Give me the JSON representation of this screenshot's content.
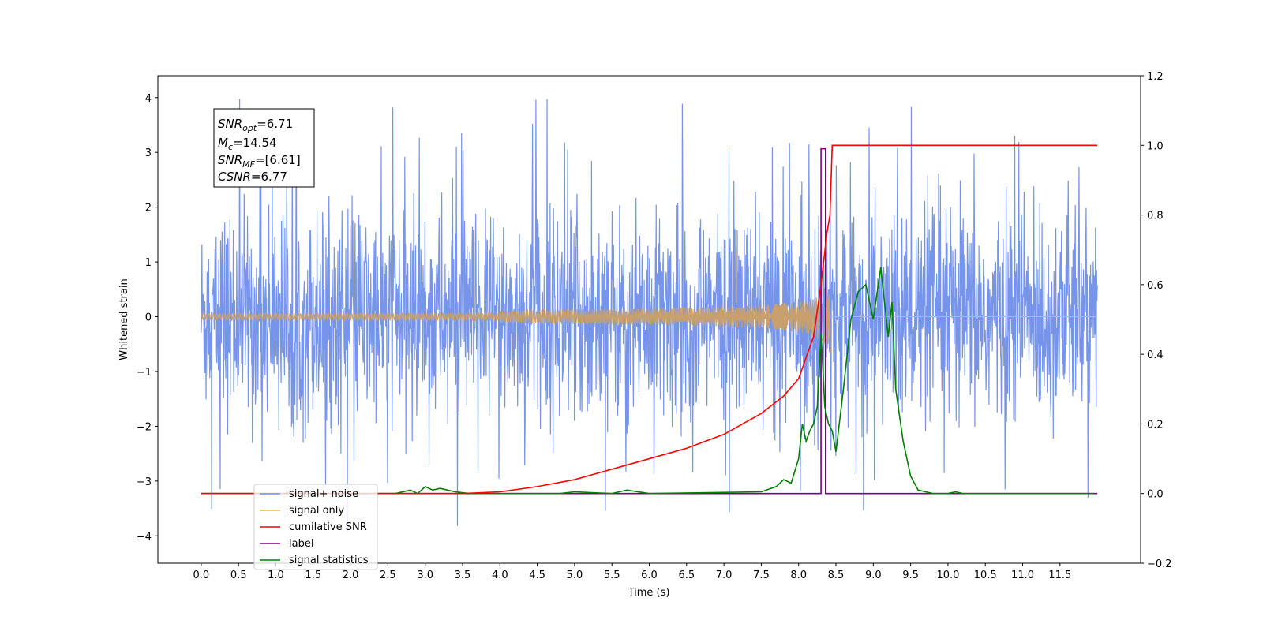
{
  "chart_data": {
    "type": "line",
    "xlabel": "Time (s)",
    "ylabel_left": "Whitened strain",
    "xlim": [
      -0.58,
      12.58
    ],
    "ylim_left": [
      -4.5,
      4.4
    ],
    "ylim_right": [
      -0.2,
      1.2
    ],
    "x_ticks": [
      "0.0",
      "0.5",
      "1.0",
      "1.5",
      "2.0",
      "2.5",
      "3.0",
      "3.5",
      "4.0",
      "4.5",
      "5.0",
      "5.5",
      "6.0",
      "6.5",
      "7.0",
      "7.5",
      "8.0",
      "8.5",
      "9.0",
      "9.5",
      "10.0",
      "10.5",
      "11.0",
      "11.5"
    ],
    "y_left_ticks": [
      4,
      3,
      2,
      1,
      0,
      -1,
      -2,
      -3,
      -4
    ],
    "y_right_ticks": [
      "1.2",
      "1.0",
      "0.8",
      "0.6",
      "0.4",
      "0.2",
      "0.0",
      "−0.2"
    ],
    "grid": false,
    "legend_position": "lower-left",
    "colors": {
      "signal_noise": "#6f8ee8",
      "signal_only": "#f5b041",
      "signal_fill": "#c8a06e",
      "cumulative_snr": "#ff0000",
      "label": "#800080",
      "signal_statistics": "#008000"
    },
    "annotation": {
      "snr_opt": {
        "symbol": "SNR",
        "sub": "opt",
        "value": "=6.71"
      },
      "mc": {
        "symbol": "M",
        "sub": "c",
        "value": "=14.54"
      },
      "snr_mf": {
        "symbol": "SNR",
        "sub": "MF",
        "value": "=[6.61]"
      },
      "csnr": {
        "symbol": "CSNR",
        "value": "=6.77"
      }
    },
    "legend": [
      {
        "key": "signal_noise",
        "label": "signal+ noise"
      },
      {
        "key": "signal_only",
        "label": "signal only"
      },
      {
        "key": "cumulative_snr",
        "label": "cumilative SNR"
      },
      {
        "key": "label",
        "label": "label"
      },
      {
        "key": "signal_statistics",
        "label": "signal statistics"
      }
    ],
    "series": {
      "signal_noise": {
        "axis": "left",
        "x_range": [
          0,
          12
        ],
        "approx_amplitude": 2.0,
        "peak": 4.0
      },
      "signal_only": {
        "axis": "left",
        "x_range": [
          0,
          8.43
        ],
        "max_amplitude": 1.0
      },
      "cumulative_snr": {
        "axis": "right",
        "x": [
          0,
          3.0,
          3.5,
          4.0,
          4.5,
          5.0,
          5.5,
          6.0,
          6.5,
          7.0,
          7.5,
          7.8,
          8.0,
          8.2,
          8.3,
          8.38,
          8.42,
          8.45,
          12.0
        ],
        "y": [
          0,
          0,
          0.0,
          0.005,
          0.02,
          0.04,
          0.07,
          0.1,
          0.13,
          0.17,
          0.23,
          0.28,
          0.33,
          0.45,
          0.6,
          0.75,
          0.8,
          1.0,
          1.0
        ]
      },
      "label": {
        "axis": "right",
        "x": [
          0,
          8.3,
          8.3,
          8.36,
          8.36,
          8.43,
          8.43,
          12.0
        ],
        "y": [
          0,
          0,
          0.99,
          0.99,
          0.0,
          0.0,
          0.0,
          0.0
        ]
      },
      "signal_statistics": {
        "axis": "right",
        "x": [
          0,
          2.6,
          2.8,
          2.9,
          3.0,
          3.1,
          3.2,
          3.3,
          3.4,
          3.6,
          4.0,
          4.8,
          5.0,
          5.5,
          5.7,
          6.0,
          7.5,
          7.7,
          7.8,
          7.9,
          8.0,
          8.05,
          8.1,
          8.15,
          8.2,
          8.25,
          8.3,
          8.35,
          8.4,
          8.45,
          8.5,
          8.6,
          8.7,
          8.8,
          8.9,
          9.0,
          9.1,
          9.15,
          9.2,
          9.25,
          9.3,
          9.4,
          9.5,
          9.6,
          9.8,
          10.0,
          10.1,
          10.2,
          10.5,
          11.0,
          11.95
        ],
        "y": [
          0,
          0.0,
          0.01,
          0.0,
          0.02,
          0.01,
          0.015,
          0.01,
          0.005,
          0.0,
          0.0,
          0.0,
          0.005,
          0.0,
          0.01,
          0.0,
          0.005,
          0.02,
          0.04,
          0.03,
          0.1,
          0.2,
          0.15,
          0.18,
          0.2,
          0.25,
          0.46,
          0.25,
          0.2,
          0.18,
          0.12,
          0.3,
          0.5,
          0.58,
          0.6,
          0.5,
          0.65,
          0.55,
          0.45,
          0.55,
          0.3,
          0.15,
          0.05,
          0.01,
          0.0,
          0.0,
          0.005,
          0.0,
          0.0,
          0.0,
          0.0
        ]
      }
    }
  }
}
